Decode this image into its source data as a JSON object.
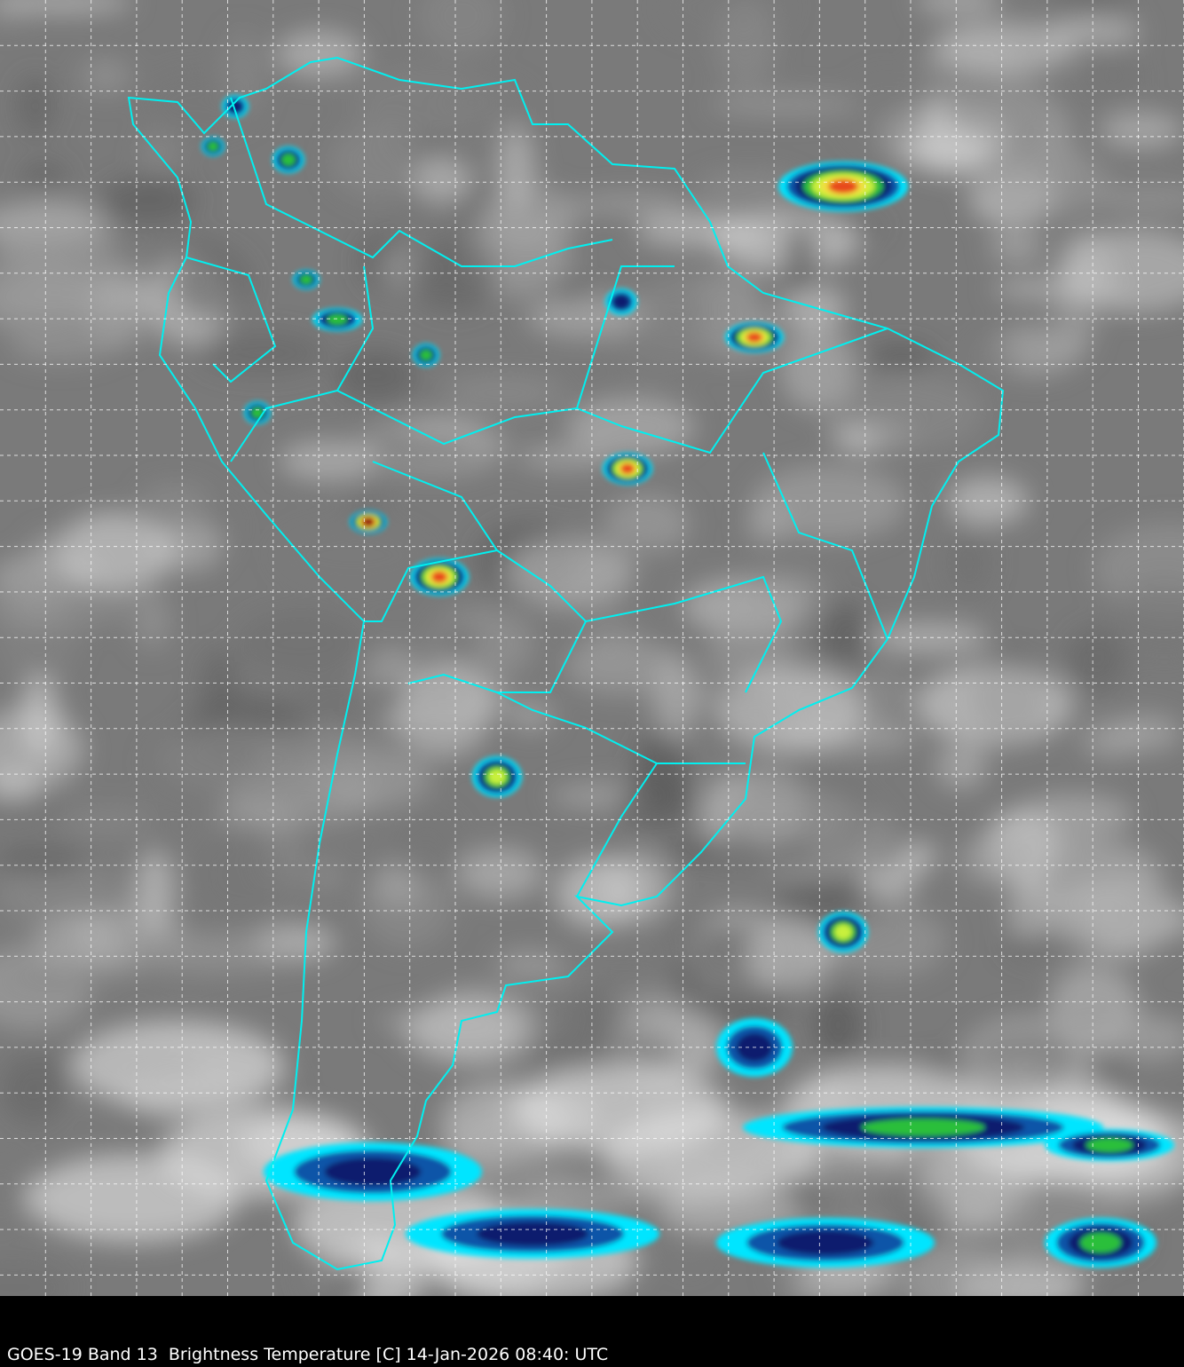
{
  "caption": "GOES-19 Band 13  Brightness Temperature [C] 14-Jan-2026 08:40: UTC",
  "colors": {
    "background": "#000000",
    "coastline": "#00f0f0",
    "grid": "#ffffff",
    "caption_text": "#ffffff",
    "colorscale": [
      "#00e5ff",
      "#0a55a8",
      "#0a1f6e",
      "#2bbf3a",
      "#c8f03c",
      "#f0e040",
      "#e84a1e",
      "#8a0a0a"
    ]
  }
}
